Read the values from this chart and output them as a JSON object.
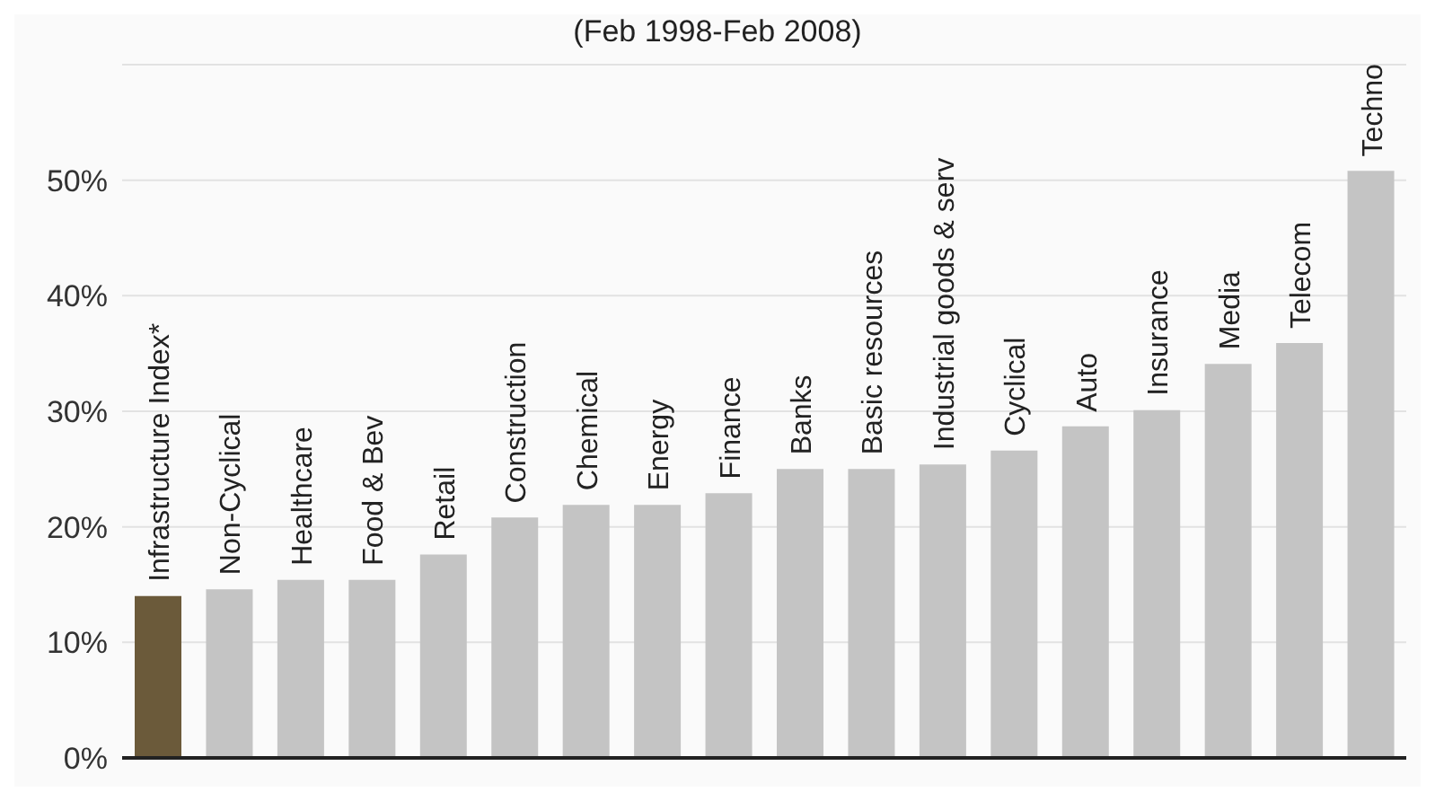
{
  "chart_data": {
    "type": "bar",
    "subtitle": "(Feb 1998-Feb 2008)",
    "categories": [
      "Infrastructure Index*",
      "Non-Cyclical",
      "Healthcare",
      "Food & Bev",
      "Retail",
      "Construction",
      "Chemical",
      "Energy",
      "Finance",
      "Banks",
      "Basic resources",
      "Industrial goods & serv",
      "Cyclical",
      "Auto",
      "Insurance",
      "Media",
      "Telecom",
      "Techno"
    ],
    "values": [
      14.0,
      14.6,
      15.4,
      15.4,
      17.6,
      20.8,
      21.9,
      21.9,
      22.9,
      25.0,
      25.0,
      25.4,
      26.6,
      28.7,
      30.1,
      34.1,
      35.9,
      50.8
    ],
    "colors": [
      "#6b5a3a",
      "#c4c4c4",
      "#c4c4c4",
      "#c4c4c4",
      "#c4c4c4",
      "#c4c4c4",
      "#c4c4c4",
      "#c4c4c4",
      "#c4c4c4",
      "#c4c4c4",
      "#c4c4c4",
      "#c4c4c4",
      "#c4c4c4",
      "#c4c4c4",
      "#c4c4c4",
      "#c4c4c4",
      "#c4c4c4",
      "#c4c4c4"
    ],
    "ylim": [
      0,
      60
    ],
    "yticks": [
      {
        "value": 0,
        "label": "0%"
      },
      {
        "value": 10,
        "label": "10%"
      },
      {
        "value": 20,
        "label": "20%"
      },
      {
        "value": 30,
        "label": "30%"
      },
      {
        "value": 40,
        "label": "40%"
      },
      {
        "value": 50,
        "label": "50%"
      }
    ],
    "grid": "y"
  }
}
